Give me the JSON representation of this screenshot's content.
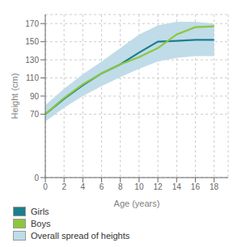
{
  "chart_data": {
    "type": "line",
    "x_label": "Age (years)",
    "y_label": "Height (cm)",
    "x": [
      0,
      2,
      4,
      6,
      8,
      10,
      12,
      14,
      16,
      18
    ],
    "series": [
      {
        "name": "Girls",
        "color": "#1a7f8e",
        "values": [
          70,
          87,
          102,
          115,
          125,
          138,
          150,
          151,
          152,
          152
        ]
      },
      {
        "name": "Boys",
        "color": "#8dc63f",
        "values": [
          70,
          88,
          103,
          115,
          125,
          133,
          143,
          158,
          166,
          167
        ]
      },
      {
        "name": "Overall spread of heights",
        "type": "band",
        "color": "#c0dce8",
        "upper": [
          80,
          98,
          114,
          128,
          143,
          158,
          168,
          172,
          172,
          170
        ],
        "lower": [
          62,
          77,
          90,
          101,
          111,
          120,
          128,
          132,
          134,
          134
        ]
      }
    ],
    "xlim": [
      0,
      19.5
    ],
    "xticks": [
      0,
      2,
      4,
      6,
      8,
      10,
      12,
      14,
      16,
      18
    ],
    "ylim": [
      0,
      180
    ],
    "yticks": [
      0,
      70,
      90,
      110,
      130,
      150,
      170
    ],
    "grid": true,
    "legend": "bottom"
  }
}
